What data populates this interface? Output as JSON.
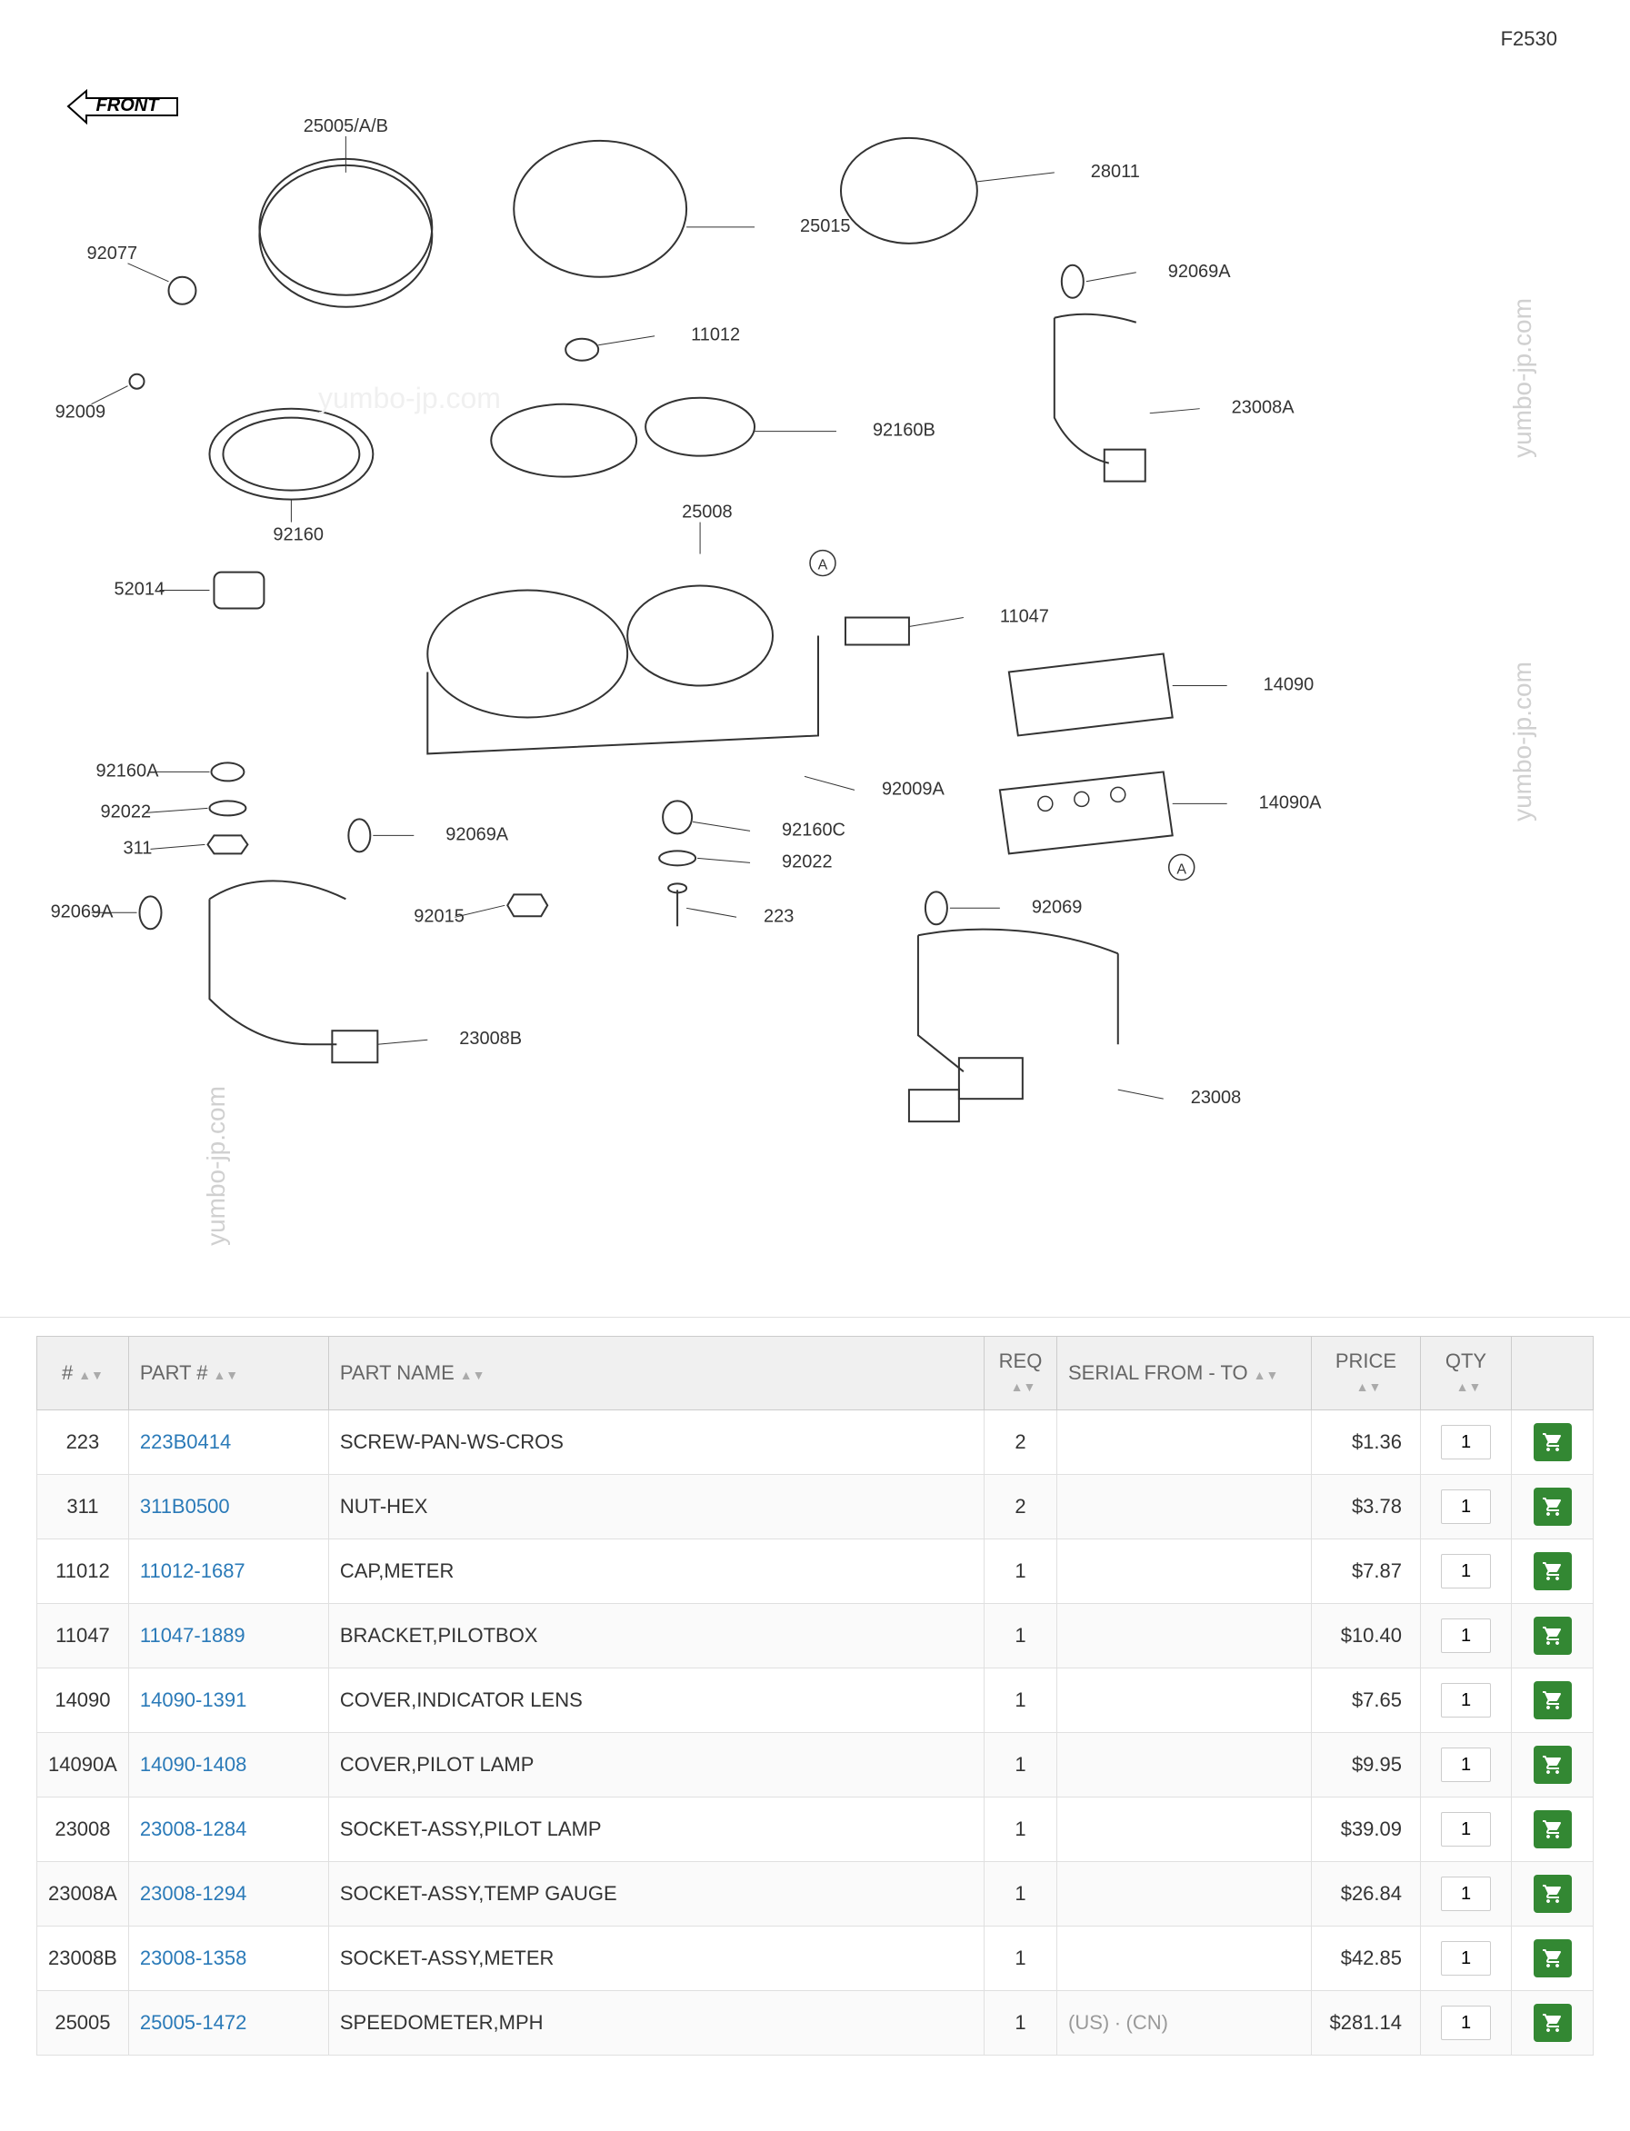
{
  "diagram": {
    "code": "F2530",
    "front_label": "FRONT",
    "watermark": "yumbo-jp.com",
    "callouts": [
      "25005/A/B",
      "92077",
      "92009",
      "92160",
      "52014",
      "92160A",
      "92022",
      "311",
      "92069A",
      "23008B",
      "92015",
      "11012",
      "25015",
      "92160B",
      "25008",
      "223",
      "92009A",
      "92160C",
      "92022",
      "28011",
      "92069A",
      "23008A",
      "11047",
      "14090",
      "14090A",
      "92069",
      "23008"
    ]
  },
  "table": {
    "headers": {
      "ref": "#",
      "part": "PART #",
      "name": "PART NAME",
      "req": "REQ",
      "serial": "SERIAL FROM - TO",
      "price": "PRICE",
      "qty": "QTY",
      "cart": ""
    },
    "rows": [
      {
        "ref": "223",
        "part": "223B0414",
        "name": "SCREW-PAN-WS-CROS",
        "req": "2",
        "serial": "",
        "price": "$1.36",
        "qty": "1"
      },
      {
        "ref": "311",
        "part": "311B0500",
        "name": "NUT-HEX",
        "req": "2",
        "serial": "",
        "price": "$3.78",
        "qty": "1"
      },
      {
        "ref": "11012",
        "part": "11012-1687",
        "name": "CAP,METER",
        "req": "1",
        "serial": "",
        "price": "$7.87",
        "qty": "1"
      },
      {
        "ref": "11047",
        "part": "11047-1889",
        "name": "BRACKET,PILOTBOX",
        "req": "1",
        "serial": "",
        "price": "$10.40",
        "qty": "1"
      },
      {
        "ref": "14090",
        "part": "14090-1391",
        "name": "COVER,INDICATOR LENS",
        "req": "1",
        "serial": "",
        "price": "$7.65",
        "qty": "1"
      },
      {
        "ref": "14090A",
        "part": "14090-1408",
        "name": "COVER,PILOT LAMP",
        "req": "1",
        "serial": "",
        "price": "$9.95",
        "qty": "1"
      },
      {
        "ref": "23008",
        "part": "23008-1284",
        "name": "SOCKET-ASSY,PILOT LAMP",
        "req": "1",
        "serial": "",
        "price": "$39.09",
        "qty": "1"
      },
      {
        "ref": "23008A",
        "part": "23008-1294",
        "name": "SOCKET-ASSY,TEMP GAUGE",
        "req": "1",
        "serial": "",
        "price": "$26.84",
        "qty": "1"
      },
      {
        "ref": "23008B",
        "part": "23008-1358",
        "name": "SOCKET-ASSY,METER",
        "req": "1",
        "serial": "",
        "price": "$42.85",
        "qty": "1"
      },
      {
        "ref": "25005",
        "part": "25005-1472",
        "name": "SPEEDOMETER,MPH",
        "req": "1",
        "serial": "(US) ∙ (CN)",
        "price": "$281.14",
        "qty": "1"
      }
    ]
  },
  "styling": {
    "cart_button_color": "#338833",
    "link_color": "#2a7ab8",
    "header_bg": "#f0f0f0",
    "border_color": "#e0e0e0",
    "text_muted": "#999999"
  }
}
